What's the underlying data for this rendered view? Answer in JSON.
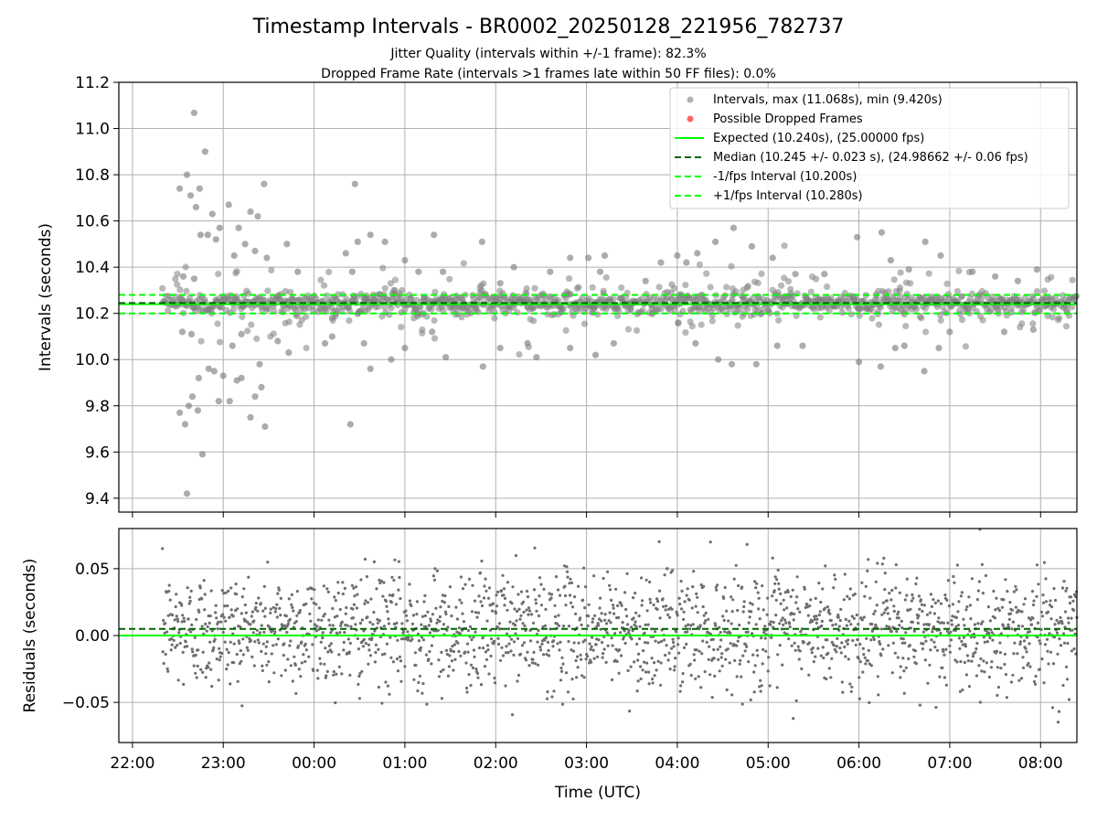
{
  "figure": {
    "title": "Timestamp Intervals - BR0002_20250128_221956_782737",
    "subtitle_1": "Jitter Quality (intervals within +/-1 frame): 82.3%",
    "subtitle_2": "Dropped Frame Rate (intervals >1 frames late within 50 FF files): 0.0%"
  },
  "colors": {
    "scatter": "#808080",
    "dropped": "#ff0000",
    "expected": "#00ff00",
    "median": "#006400",
    "bound": "#00ff00",
    "grid": "#b0b0b0"
  },
  "chart_data": [
    {
      "type": "scatter",
      "xlabel": "",
      "ylabel": "Intervals (seconds)",
      "xlim": [
        21.85,
        32.4
      ],
      "ylim": [
        9.34,
        11.2
      ],
      "yticks": [
        9.4,
        9.6,
        9.8,
        10.0,
        10.2,
        10.4,
        10.6,
        10.8,
        11.0,
        11.2
      ],
      "ytick_labels": [
        "9.4",
        "9.6",
        "9.8",
        "10.0",
        "10.2",
        "10.4",
        "10.6",
        "10.8",
        "11.0",
        "11.2"
      ],
      "xticks": [
        22,
        23,
        24,
        25,
        26,
        27,
        28,
        29,
        30,
        31,
        32
      ],
      "grid": true,
      "legend_position": "top-right",
      "legend": [
        "Intervals, max (11.068s), min (9.420s)",
        "Possible Dropped Frames",
        "Expected (10.240s), (25.00000 fps)",
        "Median (10.245 +/- 0.023 s), (24.98662 +/- 0.06 fps)",
        "-1/fps Interval (10.200s)",
        "+1/fps Interval (10.280s)"
      ],
      "reference_lines": {
        "expected": 10.24,
        "median": 10.245,
        "lower": 10.2,
        "upper": 10.28
      },
      "stats": {
        "max": 11.068,
        "min": 9.42,
        "median": 10.245,
        "std": 0.023
      },
      "time_range_hours": [
        22.33,
        32.4
      ],
      "outliers": [
        {
          "x": 22.68,
          "y": 11.068
        },
        {
          "x": 22.6,
          "y": 10.8
        },
        {
          "x": 22.74,
          "y": 10.74
        },
        {
          "x": 22.52,
          "y": 10.74
        },
        {
          "x": 22.64,
          "y": 10.71
        },
        {
          "x": 22.8,
          "y": 10.9
        },
        {
          "x": 22.7,
          "y": 10.66
        },
        {
          "x": 22.88,
          "y": 10.63
        },
        {
          "x": 22.96,
          "y": 10.57
        },
        {
          "x": 23.06,
          "y": 10.67
        },
        {
          "x": 23.17,
          "y": 10.57
        },
        {
          "x": 23.3,
          "y": 10.64
        },
        {
          "x": 23.38,
          "y": 10.62
        },
        {
          "x": 23.45,
          "y": 10.76
        },
        {
          "x": 22.75,
          "y": 10.54
        },
        {
          "x": 22.83,
          "y": 10.54
        },
        {
          "x": 22.92,
          "y": 10.52
        },
        {
          "x": 23.24,
          "y": 10.5
        },
        {
          "x": 23.7,
          "y": 10.5
        },
        {
          "x": 23.12,
          "y": 10.45
        },
        {
          "x": 23.35,
          "y": 10.47
        },
        {
          "x": 23.48,
          "y": 10.44
        },
        {
          "x": 22.56,
          "y": 10.36
        },
        {
          "x": 22.68,
          "y": 10.35
        },
        {
          "x": 23.82,
          "y": 10.38
        },
        {
          "x": 22.52,
          "y": 9.77
        },
        {
          "x": 22.58,
          "y": 9.72
        },
        {
          "x": 22.62,
          "y": 9.8
        },
        {
          "x": 22.66,
          "y": 9.84
        },
        {
          "x": 22.72,
          "y": 9.78
        },
        {
          "x": 22.73,
          "y": 9.92
        },
        {
          "x": 22.77,
          "y": 9.59
        },
        {
          "x": 22.6,
          "y": 9.42
        },
        {
          "x": 22.84,
          "y": 9.96
        },
        {
          "x": 22.9,
          "y": 9.95
        },
        {
          "x": 22.95,
          "y": 9.82
        },
        {
          "x": 23.0,
          "y": 9.93
        },
        {
          "x": 23.07,
          "y": 9.82
        },
        {
          "x": 23.15,
          "y": 9.91
        },
        {
          "x": 23.2,
          "y": 9.92
        },
        {
          "x": 23.3,
          "y": 9.75
        },
        {
          "x": 23.35,
          "y": 9.84
        },
        {
          "x": 23.42,
          "y": 9.88
        },
        {
          "x": 23.46,
          "y": 9.71
        },
        {
          "x": 23.4,
          "y": 9.98
        },
        {
          "x": 22.65,
          "y": 10.11
        },
        {
          "x": 22.55,
          "y": 10.12
        },
        {
          "x": 23.1,
          "y": 10.06
        },
        {
          "x": 23.2,
          "y": 10.11
        },
        {
          "x": 23.6,
          "y": 10.08
        },
        {
          "x": 23.72,
          "y": 10.03
        },
        {
          "x": 24.12,
          "y": 10.07
        },
        {
          "x": 24.2,
          "y": 10.18
        },
        {
          "x": 24.35,
          "y": 10.46
        },
        {
          "x": 24.42,
          "y": 10.38
        },
        {
          "x": 24.4,
          "y": 9.72
        },
        {
          "x": 24.48,
          "y": 10.51
        },
        {
          "x": 24.62,
          "y": 10.54
        },
        {
          "x": 24.78,
          "y": 10.51
        },
        {
          "x": 24.62,
          "y": 9.96
        },
        {
          "x": 24.85,
          "y": 10.0
        },
        {
          "x": 24.45,
          "y": 10.76
        },
        {
          "x": 24.2,
          "y": 10.1
        },
        {
          "x": 24.55,
          "y": 10.07
        },
        {
          "x": 25.0,
          "y": 10.43
        },
        {
          "x": 25.15,
          "y": 10.38
        },
        {
          "x": 25.32,
          "y": 10.54
        },
        {
          "x": 25.42,
          "y": 10.38
        },
        {
          "x": 25.0,
          "y": 10.05
        },
        {
          "x": 25.3,
          "y": 10.12
        },
        {
          "x": 25.45,
          "y": 10.01
        },
        {
          "x": 25.85,
          "y": 10.51
        },
        {
          "x": 25.86,
          "y": 9.97
        },
        {
          "x": 26.05,
          "y": 10.33
        },
        {
          "x": 26.05,
          "y": 10.05
        },
        {
          "x": 26.2,
          "y": 10.4
        },
        {
          "x": 26.35,
          "y": 10.07
        },
        {
          "x": 26.45,
          "y": 10.01
        },
        {
          "x": 26.6,
          "y": 10.38
        },
        {
          "x": 26.82,
          "y": 10.44
        },
        {
          "x": 27.02,
          "y": 10.44
        },
        {
          "x": 27.1,
          "y": 10.02
        },
        {
          "x": 27.15,
          "y": 10.38
        },
        {
          "x": 27.2,
          "y": 10.45
        },
        {
          "x": 26.82,
          "y": 10.05
        },
        {
          "x": 27.3,
          "y": 10.07
        },
        {
          "x": 27.65,
          "y": 10.34
        },
        {
          "x": 27.82,
          "y": 10.42
        },
        {
          "x": 28.0,
          "y": 10.45
        },
        {
          "x": 28.1,
          "y": 10.42
        },
        {
          "x": 28.22,
          "y": 10.46
        },
        {
          "x": 28.2,
          "y": 10.07
        },
        {
          "x": 28.42,
          "y": 10.51
        },
        {
          "x": 28.45,
          "y": 10.0
        },
        {
          "x": 28.62,
          "y": 10.57
        },
        {
          "x": 28.6,
          "y": 9.98
        },
        {
          "x": 28.82,
          "y": 10.49
        },
        {
          "x": 28.87,
          "y": 9.98
        },
        {
          "x": 29.05,
          "y": 10.44
        },
        {
          "x": 29.1,
          "y": 10.06
        },
        {
          "x": 29.3,
          "y": 10.37
        },
        {
          "x": 29.38,
          "y": 10.06
        },
        {
          "x": 29.62,
          "y": 10.37
        },
        {
          "x": 29.98,
          "y": 10.53
        },
        {
          "x": 30.0,
          "y": 9.99
        },
        {
          "x": 30.25,
          "y": 10.55
        },
        {
          "x": 30.24,
          "y": 9.97
        },
        {
          "x": 30.35,
          "y": 10.43
        },
        {
          "x": 30.4,
          "y": 10.05
        },
        {
          "x": 30.55,
          "y": 10.39
        },
        {
          "x": 30.5,
          "y": 10.06
        },
        {
          "x": 30.73,
          "y": 10.51
        },
        {
          "x": 30.72,
          "y": 9.95
        },
        {
          "x": 30.9,
          "y": 10.45
        },
        {
          "x": 30.88,
          "y": 10.05
        },
        {
          "x": 31.0,
          "y": 10.12
        },
        {
          "x": 31.25,
          "y": 10.38
        },
        {
          "x": 31.5,
          "y": 10.36
        },
        {
          "x": 31.6,
          "y": 10.12
        },
        {
          "x": 31.75,
          "y": 10.34
        },
        {
          "x": 31.92,
          "y": 10.13
        },
        {
          "x": 31.96,
          "y": 10.39
        }
      ]
    },
    {
      "type": "scatter",
      "xlabel": "Time (UTC)",
      "ylabel": "Residuals (seconds)",
      "xlim": [
        21.85,
        32.4
      ],
      "ylim": [
        -0.08,
        0.08
      ],
      "yticks": [
        -0.05,
        0.0,
        0.05
      ],
      "ytick_labels": [
        "−0.05",
        "0.00",
        "0.05"
      ],
      "xticks": [
        22,
        23,
        24,
        25,
        26,
        27,
        28,
        29,
        30,
        31,
        32
      ],
      "xtick_labels": [
        "22:00",
        "23:00",
        "00:00",
        "01:00",
        "02:00",
        "03:00",
        "04:00",
        "05:00",
        "06:00",
        "07:00",
        "08:00"
      ],
      "grid": true,
      "reference_lines": {
        "expected": 0.0,
        "median": 0.005
      },
      "point_count": 2000,
      "residual_std": 0.023
    }
  ]
}
